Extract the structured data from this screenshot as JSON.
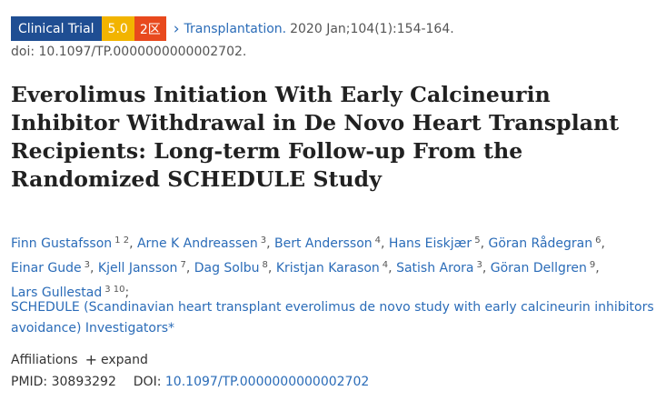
{
  "badges": {
    "type": "Clinical Trial",
    "impact": "5.0",
    "quartile": "2区"
  },
  "citation": {
    "journal": "Transplantation.",
    "details": "2020 Jan;104(1):154-164.",
    "doi_line": "doi: 10.1097/TP.0000000000002702."
  },
  "title": "Everolimus Initiation With Early Calcineurin Inhibitor Withdrawal in De Novo Heart Transplant Recipients: Long-term Follow-up From the Randomized SCHEDULE Study",
  "authors": [
    {
      "name": "Finn Gustafsson",
      "affs": "1 2"
    },
    {
      "name": "Arne K Andreassen",
      "affs": "3"
    },
    {
      "name": "Bert Andersson",
      "affs": "4"
    },
    {
      "name": "Hans Eiskjær",
      "affs": "5"
    },
    {
      "name": "Göran Rådegran",
      "affs": "6"
    },
    {
      "name": "Einar Gude",
      "affs": "3"
    },
    {
      "name": "Kjell Jansson",
      "affs": "7"
    },
    {
      "name": "Dag Solbu",
      "affs": "8"
    },
    {
      "name": "Kristjan Karason",
      "affs": "4"
    },
    {
      "name": "Satish Arora",
      "affs": "3"
    },
    {
      "name": "Göran Dellgren",
      "affs": "9"
    },
    {
      "name": "Lars Gullestad",
      "affs": "3 10"
    }
  ],
  "investigators": "SCHEDULE (Scandinavian heart transplant everolimus de novo study with early calcineurin inhibitors avoidance) Investigators*",
  "affiliations": {
    "label": "Affiliations",
    "expand": "expand"
  },
  "ids": {
    "pmid_label": "PMID:",
    "pmid": "30893292",
    "doi_label": "DOI:",
    "doi": "10.1097/TP.0000000000002702"
  }
}
